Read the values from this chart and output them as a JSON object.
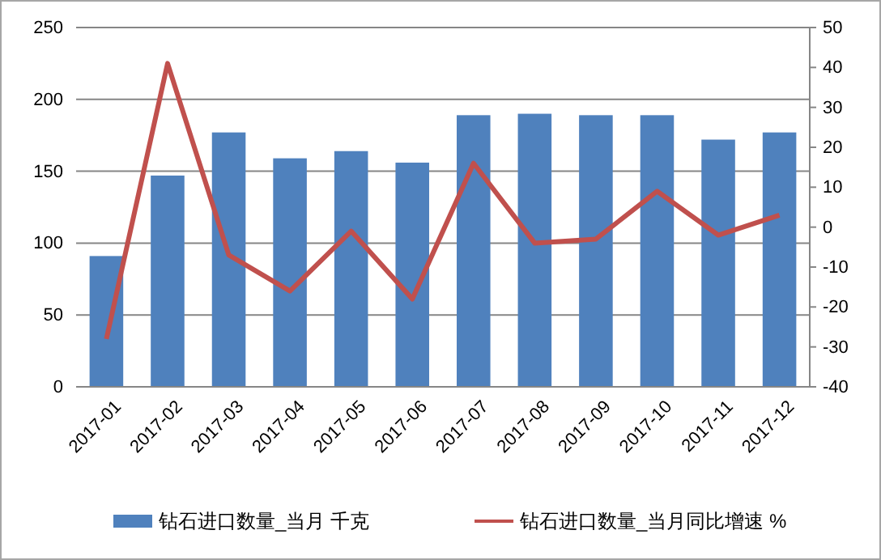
{
  "chart_data": {
    "type": "bar",
    "categories": [
      "2017-01",
      "2017-02",
      "2017-03",
      "2017-04",
      "2017-05",
      "2017-06",
      "2017-07",
      "2017-08",
      "2017-09",
      "2017-10",
      "2017-11",
      "2017-12"
    ],
    "series": [
      {
        "name": "钻石进口数量_当月 千克",
        "color": "#4f81bd",
        "values": [
          91,
          147,
          177,
          159,
          164,
          156,
          189,
          190,
          189,
          189,
          172,
          177
        ]
      },
      {
        "name": "钻石进口数量_当月同比增速 %",
        "color": "#c0504d",
        "type": "line",
        "axis": "y2",
        "values": [
          -28,
          41,
          -7,
          -16,
          -1,
          -18,
          16,
          -4,
          -3,
          9,
          -2,
          3
        ]
      }
    ],
    "ylim": [
      0,
      250
    ],
    "yticks": [
      0,
      50,
      100,
      150,
      200,
      250
    ],
    "y2lim": [
      -40,
      50
    ],
    "y2ticks": [
      -40,
      -30,
      -20,
      -10,
      0,
      10,
      20,
      30,
      40,
      50
    ],
    "grid": "y",
    "legend": "bottom",
    "marker": "none",
    "line_style": "solid"
  }
}
